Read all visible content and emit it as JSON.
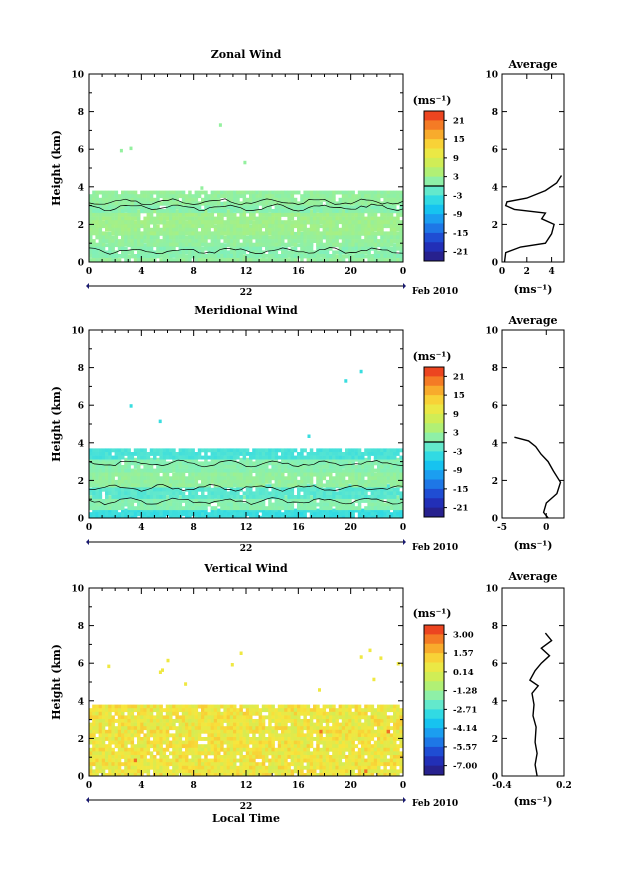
{
  "chart_data": [
    {
      "type": "heatmap",
      "title": "Zonal Wind",
      "ylabel": "Height (km)",
      "ylim": [
        0,
        10
      ],
      "xlim": [
        0,
        24
      ],
      "yticks": [
        "0",
        "2",
        "4",
        "6",
        "8",
        "10"
      ],
      "xticks": [
        "0",
        "4",
        "8",
        "12",
        "16",
        "20",
        "0"
      ],
      "date_label": "22",
      "date_suffix": "Feb 2010",
      "colorbar": {
        "unit": "(ms⁻¹)",
        "ticks": [
          "21",
          "15",
          "9",
          "3",
          "-3",
          "-9",
          "-15",
          "-21"
        ],
        "range": [
          -24,
          24
        ],
        "zero_line": 0
      },
      "field": {
        "bands": [
          {
            "from": 0.0,
            "to": 0.4,
            "value": 2
          },
          {
            "from": 0.4,
            "to": 1.0,
            "value": 1
          },
          {
            "from": 1.0,
            "to": 1.6,
            "value": 2
          },
          {
            "from": 1.6,
            "to": 2.2,
            "value": 3
          },
          {
            "from": 2.2,
            "to": 2.8,
            "value": 3
          },
          {
            "from": 2.8,
            "to": 3.2,
            "value": 1
          },
          {
            "from": 3.2,
            "to": 3.8,
            "value": 2
          }
        ],
        "contours_km": [
          0.6,
          2.9,
          3.2
        ]
      },
      "average": {
        "title": "Average",
        "xlim": [
          0,
          5
        ],
        "xticks": [
          "0",
          "2",
          "4"
        ],
        "xlabel": "(ms⁻¹)",
        "profile": [
          [
            0.2,
            0.0
          ],
          [
            0.3,
            0.5
          ],
          [
            1.5,
            0.8
          ],
          [
            3.5,
            1.0
          ],
          [
            4.0,
            1.5
          ],
          [
            4.2,
            2.0
          ],
          [
            3.2,
            2.3
          ],
          [
            3.5,
            2.6
          ],
          [
            1.0,
            2.8
          ],
          [
            0.3,
            3.0
          ],
          [
            0.4,
            3.2
          ],
          [
            2.0,
            3.4
          ],
          [
            3.5,
            3.8
          ],
          [
            4.4,
            4.2
          ],
          [
            4.8,
            4.6
          ]
        ]
      }
    },
    {
      "type": "heatmap",
      "title": "Meridional Wind",
      "ylabel": "Height (km)",
      "ylim": [
        0,
        10
      ],
      "xlim": [
        0,
        24
      ],
      "yticks": [
        "0",
        "2",
        "4",
        "6",
        "8",
        "10"
      ],
      "xticks": [
        "0",
        "4",
        "8",
        "12",
        "16",
        "20",
        "0"
      ],
      "date_label": "22",
      "date_suffix": "Feb 2010",
      "colorbar": {
        "unit": "(ms⁻¹)",
        "ticks": [
          "21",
          "15",
          "9",
          "3",
          "-3",
          "-9",
          "-15",
          "-21"
        ],
        "range": [
          -24,
          24
        ],
        "zero_line": 0
      },
      "field": {
        "bands": [
          {
            "from": 0.0,
            "to": 0.5,
            "value": -4
          },
          {
            "from": 0.5,
            "to": 1.2,
            "value": 1
          },
          {
            "from": 1.2,
            "to": 1.8,
            "value": -2
          },
          {
            "from": 1.8,
            "to": 2.6,
            "value": 2
          },
          {
            "from": 2.6,
            "to": 3.2,
            "value": 1
          },
          {
            "from": 3.2,
            "to": 3.7,
            "value": -3
          }
        ],
        "contours_km": [
          0.9,
          1.6,
          2.9
        ]
      },
      "average": {
        "title": "Average",
        "xlim": [
          -5,
          2
        ],
        "xticks": [
          "-5",
          "0"
        ],
        "xlabel": "(ms⁻¹)",
        "profile": [
          [
            0.2,
            0.0
          ],
          [
            -0.3,
            0.3
          ],
          [
            0.0,
            0.8
          ],
          [
            1.2,
            1.3
          ],
          [
            1.6,
            1.9
          ],
          [
            0.8,
            2.5
          ],
          [
            0.2,
            3.0
          ],
          [
            -0.6,
            3.4
          ],
          [
            -1.2,
            3.8
          ],
          [
            -2.0,
            4.1
          ],
          [
            -3.6,
            4.3
          ]
        ]
      }
    },
    {
      "type": "heatmap",
      "title": "Vertical Wind",
      "ylabel": "Height (km)",
      "xlabel": "Local Time",
      "ylim": [
        0,
        10
      ],
      "xlim": [
        0,
        24
      ],
      "yticks": [
        "0",
        "2",
        "4",
        "6",
        "8",
        "10"
      ],
      "xticks": [
        "0",
        "4",
        "8",
        "12",
        "16",
        "20",
        "0"
      ],
      "date_label": "22",
      "date_suffix": "Feb 2010",
      "colorbar": {
        "unit": "(ms⁻¹)",
        "ticks": [
          "3.00",
          "1.57",
          "0.14",
          "-1.28",
          "-2.71",
          "-4.14",
          "-5.57",
          "-7.00"
        ],
        "range": [
          -7.7,
          3.7
        ],
        "zero_line": null
      },
      "field": {
        "bands": [
          {
            "from": 0.0,
            "to": 3.8,
            "value": 0.6
          }
        ],
        "contours_km": []
      },
      "average": {
        "title": "Average",
        "xlim": [
          -0.4,
          0.2
        ],
        "xticks": [
          "-0.4",
          "0.2"
        ],
        "xlabel": "(ms⁻¹)",
        "profile": [
          [
            -0.06,
            0.0
          ],
          [
            -0.08,
            0.6
          ],
          [
            -0.06,
            1.2
          ],
          [
            -0.08,
            1.8
          ],
          [
            -0.07,
            2.6
          ],
          [
            -0.1,
            3.2
          ],
          [
            -0.09,
            3.8
          ],
          [
            -0.11,
            4.4
          ],
          [
            -0.05,
            4.8
          ],
          [
            -0.13,
            5.1
          ],
          [
            -0.08,
            5.6
          ],
          [
            -0.02,
            6.0
          ],
          [
            0.06,
            6.4
          ],
          [
            -0.02,
            6.8
          ],
          [
            0.08,
            7.2
          ],
          [
            0.02,
            7.6
          ]
        ]
      }
    }
  ]
}
